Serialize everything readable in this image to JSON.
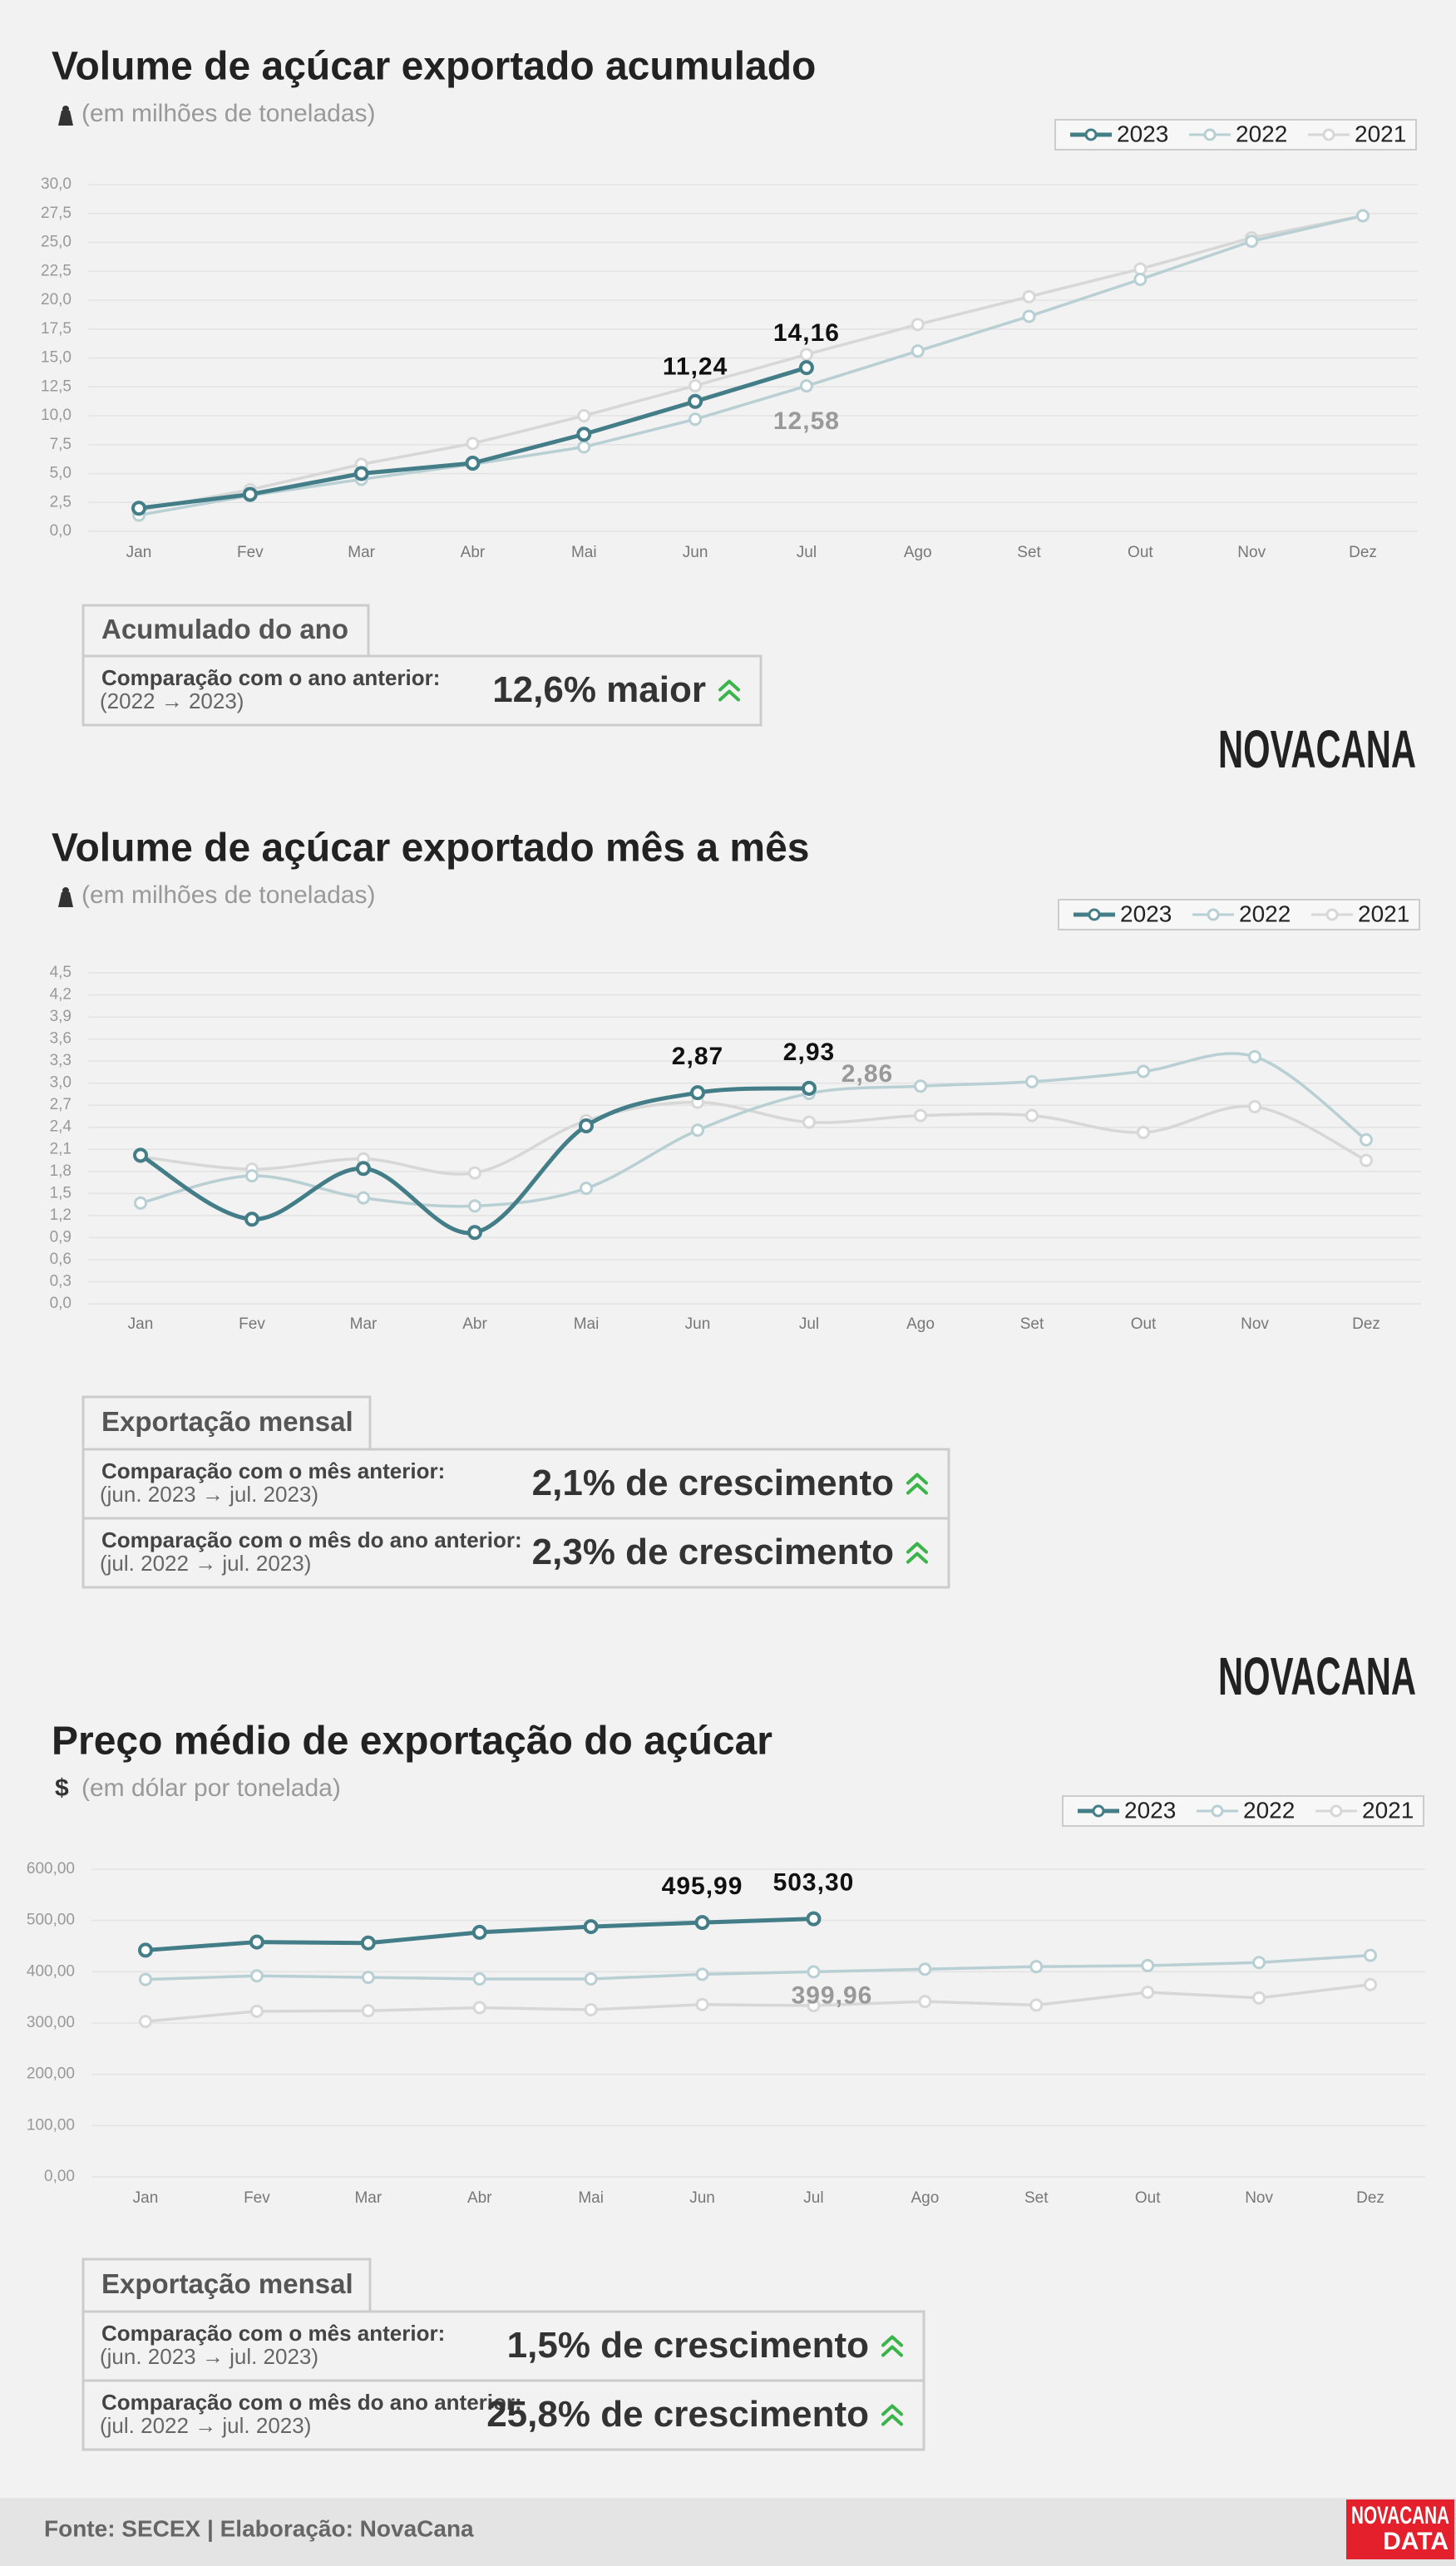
{
  "chart_data": [
    {
      "type": "line",
      "title": "Volume de açúcar exportado acumulado",
      "subtitle": "(em milhões de toneladas)",
      "categories": [
        "Jan",
        "Fev",
        "Mar",
        "Abr",
        "Mai",
        "Jun",
        "Jul",
        "Ago",
        "Set",
        "Out",
        "Nov",
        "Dez"
      ],
      "series": [
        {
          "name": "2023",
          "color": "#437d87",
          "values": [
            2.0,
            3.2,
            5.0,
            5.9,
            8.4,
            11.24,
            14.16,
            null,
            null,
            null,
            null,
            null
          ],
          "value_labels": [
            null,
            null,
            null,
            null,
            null,
            "11,24",
            "14,16",
            null,
            null,
            null,
            null,
            null
          ]
        },
        {
          "name": "2022",
          "color": "#b8cfd3",
          "values": [
            1.4,
            3.1,
            4.5,
            5.8,
            7.3,
            9.7,
            12.58,
            15.6,
            18.6,
            21.8,
            25.1,
            27.3
          ],
          "value_labels": [
            null,
            null,
            null,
            null,
            null,
            null,
            "12,58",
            null,
            null,
            null,
            null,
            null
          ]
        },
        {
          "name": "2021",
          "color": "#d7d7d7",
          "values": [
            1.8,
            3.6,
            5.8,
            7.6,
            10.0,
            12.6,
            15.3,
            17.9,
            20.3,
            22.7,
            25.4,
            27.3
          ]
        }
      ],
      "ylim": [
        0,
        30
      ],
      "yticks": [
        {
          "value": 0,
          "label": "0,0"
        },
        {
          "value": 2.5,
          "label": "2,5"
        },
        {
          "value": 5,
          "label": "5,0"
        },
        {
          "value": 7.5,
          "label": "7,5"
        },
        {
          "value": 10,
          "label": "10,0"
        },
        {
          "value": 12.5,
          "label": "12,5"
        },
        {
          "value": 15,
          "label": "15,0"
        },
        {
          "value": 17.5,
          "label": "17,5"
        },
        {
          "value": 20,
          "label": "20,0"
        },
        {
          "value": 22.5,
          "label": "22,5"
        },
        {
          "value": 25,
          "label": "25,0"
        },
        {
          "value": 27.5,
          "label": "27,5"
        },
        {
          "value": 30,
          "label": "30,0"
        }
      ],
      "grid": true,
      "legend": "top-right"
    },
    {
      "type": "line",
      "title": "Volume de açúcar exportado mês a mês",
      "subtitle": "(em milhões de toneladas)",
      "categories": [
        "Jan",
        "Fev",
        "Mar",
        "Abr",
        "Mai",
        "Jun",
        "Jul",
        "Ago",
        "Set",
        "Out",
        "Nov",
        "Dez"
      ],
      "series": [
        {
          "name": "2023",
          "color": "#437d87",
          "values": [
            2.02,
            1.15,
            1.84,
            0.97,
            2.42,
            2.87,
            2.93,
            null,
            null,
            null,
            null,
            null
          ],
          "value_labels": [
            null,
            null,
            null,
            null,
            null,
            "2,87",
            "2,93",
            null,
            null,
            null,
            null,
            null
          ]
        },
        {
          "name": "2022",
          "color": "#b8cfd3",
          "values": [
            1.37,
            1.74,
            1.44,
            1.33,
            1.57,
            2.36,
            2.86,
            2.96,
            3.02,
            3.16,
            3.36,
            2.23
          ],
          "value_labels": [
            null,
            null,
            null,
            null,
            null,
            null,
            "2,86",
            null,
            null,
            null,
            null,
            null
          ]
        },
        {
          "name": "2021",
          "color": "#d7d7d7",
          "values": [
            2.0,
            1.83,
            1.97,
            1.78,
            2.49,
            2.74,
            2.47,
            2.56,
            2.56,
            2.33,
            2.68,
            1.95
          ]
        }
      ],
      "ylim": [
        0,
        4.5
      ],
      "yticks": [
        {
          "value": 0,
          "label": "0,0"
        },
        {
          "value": 0.3,
          "label": "0,3"
        },
        {
          "value": 0.6,
          "label": "0,6"
        },
        {
          "value": 0.9,
          "label": "0,9"
        },
        {
          "value": 1.2,
          "label": "1,2"
        },
        {
          "value": 1.5,
          "label": "1,5"
        },
        {
          "value": 1.8,
          "label": "1,8"
        },
        {
          "value": 2.1,
          "label": "2,1"
        },
        {
          "value": 2.4,
          "label": "2,4"
        },
        {
          "value": 2.7,
          "label": "2,7"
        },
        {
          "value": 3.0,
          "label": "3,0"
        },
        {
          "value": 3.3,
          "label": "3,3"
        },
        {
          "value": 3.6,
          "label": "3,6"
        },
        {
          "value": 3.9,
          "label": "3,9"
        },
        {
          "value": 4.2,
          "label": "4,2"
        },
        {
          "value": 4.5,
          "label": "4,5"
        }
      ],
      "grid": true,
      "legend": "top-right",
      "smooth": true
    },
    {
      "type": "line",
      "title": "Preço médio de exportação do açúcar",
      "unit_symbol": "$",
      "subtitle": "(em dólar por tonelada)",
      "categories": [
        "Jan",
        "Fev",
        "Mar",
        "Abr",
        "Mai",
        "Jun",
        "Jul",
        "Ago",
        "Set",
        "Out",
        "Nov",
        "Dez"
      ],
      "series": [
        {
          "name": "2023",
          "color": "#437d87",
          "values": [
            442,
            458,
            456,
            477,
            488,
            495.99,
            503.3,
            null,
            null,
            null,
            null,
            null
          ],
          "value_labels": [
            null,
            null,
            null,
            null,
            null,
            "495,99",
            "503,30",
            null,
            null,
            null,
            null,
            null
          ]
        },
        {
          "name": "2022",
          "color": "#b8cfd3",
          "values": [
            385,
            392,
            389,
            386,
            386,
            395,
            399.96,
            405,
            410,
            412,
            418,
            432
          ],
          "value_labels": [
            null,
            null,
            null,
            null,
            null,
            null,
            "399,96",
            null,
            null,
            null,
            null,
            null
          ]
        },
        {
          "name": "2021",
          "color": "#d7d7d7",
          "values": [
            303,
            323,
            324,
            330,
            326,
            336,
            334,
            342,
            335,
            360,
            349,
            375
          ]
        }
      ],
      "ylim": [
        0,
        600
      ],
      "yticks": [
        {
          "value": 0,
          "label": "0,00"
        },
        {
          "value": 100,
          "label": "100,00"
        },
        {
          "value": 200,
          "label": "200,00"
        },
        {
          "value": 300,
          "label": "300,00"
        },
        {
          "value": 400,
          "label": "400,00"
        },
        {
          "value": 500,
          "label": "500,00"
        },
        {
          "value": 600,
          "label": "600,00"
        }
      ],
      "grid": true,
      "legend": "top-right"
    }
  ],
  "panels": [
    {
      "title": "Acumulado do ano",
      "rows": [
        {
          "label": "Comparação com o ano anterior:",
          "period": "(2022 → 2023)",
          "value": "12,6% maior"
        }
      ]
    },
    {
      "title": "Exportação mensal",
      "rows": [
        {
          "label": "Comparação com o mês anterior:",
          "period": "(jun. 2023 → jul. 2023)",
          "value": "2,1% de crescimento"
        },
        {
          "label": "Comparação com o mês do ano anterior:",
          "period": "(jul. 2022 → jul. 2023)",
          "value": "2,3% de crescimento"
        }
      ]
    },
    {
      "title": "Exportação mensal",
      "rows": [
        {
          "label": "Comparação com o mês anterior:",
          "period": "(jun. 2023 → jul. 2023)",
          "value": "1,5% de crescimento"
        },
        {
          "label": "Comparação com o mês do ano anterior:",
          "period": "(jul. 2022 → jul. 2023)",
          "value": "25,8% de crescimento"
        }
      ]
    }
  ],
  "logos": [
    "NOVACANA",
    "NOVACANA"
  ],
  "footer": {
    "source": "Fonte: SECEX | Elaboração: NovaCana",
    "brand": [
      "NOVACANA",
      "DATA"
    ]
  }
}
